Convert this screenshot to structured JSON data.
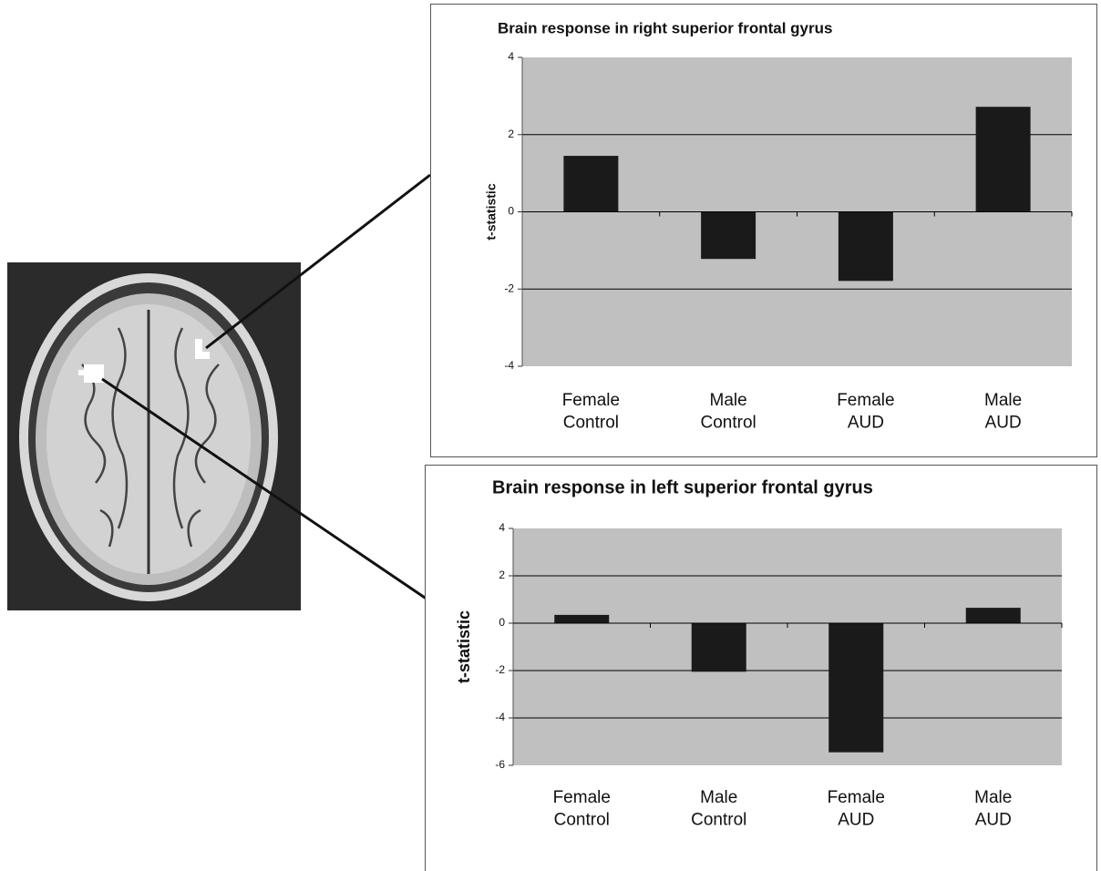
{
  "chart_data": [
    {
      "type": "bar",
      "title": "Brain response in right superior frontal gyrus",
      "y_label": "t-statistic",
      "categories": [
        [
          "Female",
          "Control"
        ],
        [
          "Male",
          "Control"
        ],
        [
          "Female",
          "AUD"
        ],
        [
          "Male",
          "AUD"
        ]
      ],
      "values": [
        1.45,
        -1.22,
        -1.79,
        2.72
      ],
      "color": "#1a1a1a",
      "ylim": [
        -4,
        4
      ],
      "yticks": [
        -4,
        -2,
        0,
        2,
        4
      ],
      "grid": true
    },
    {
      "type": "bar",
      "title": "Brain response in left superior frontal gyrus",
      "y_label": "t-statistic",
      "categories": [
        [
          "Female",
          "Control"
        ],
        [
          "Male",
          "Control"
        ],
        [
          "Female",
          "AUD"
        ],
        [
          "Male",
          "AUD"
        ]
      ],
      "values": [
        0.35,
        -2.05,
        -5.45,
        0.65
      ],
      "color": "#1a1a1a",
      "ylim": [
        -6,
        4
      ],
      "yticks": [
        -6,
        -4,
        -2,
        0,
        2,
        4
      ],
      "grid": true
    }
  ]
}
